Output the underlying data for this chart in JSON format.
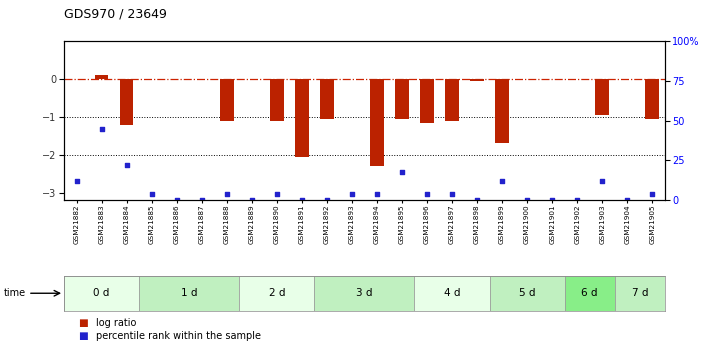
{
  "title": "GDS970 / 23649",
  "samples": [
    "GSM21882",
    "GSM21883",
    "GSM21884",
    "GSM21885",
    "GSM21886",
    "GSM21887",
    "GSM21888",
    "GSM21889",
    "GSM21890",
    "GSM21891",
    "GSM21892",
    "GSM21893",
    "GSM21894",
    "GSM21895",
    "GSM21896",
    "GSM21897",
    "GSM21898",
    "GSM21899",
    "GSM21900",
    "GSM21901",
    "GSM21902",
    "GSM21903",
    "GSM21904",
    "GSM21905"
  ],
  "log_ratio": [
    0.0,
    0.12,
    -1.2,
    0.0,
    0.0,
    0.0,
    -1.1,
    0.0,
    -1.1,
    -2.05,
    -1.05,
    0.0,
    -2.3,
    -1.05,
    -1.15,
    -1.1,
    -0.05,
    -1.7,
    0.0,
    0.0,
    0.0,
    -0.95,
    0.0,
    -1.05
  ],
  "percentile_rank": [
    12,
    45,
    22,
    4,
    0,
    0,
    4,
    0,
    4,
    0,
    0,
    4,
    4,
    18,
    4,
    4,
    0,
    12,
    0,
    0,
    0,
    12,
    0,
    4
  ],
  "time_groups": {
    "0 d": [
      0,
      1,
      2
    ],
    "1 d": [
      3,
      4,
      5,
      6
    ],
    "2 d": [
      7,
      8,
      9
    ],
    "3 d": [
      10,
      11,
      12,
      13
    ],
    "4 d": [
      14,
      15,
      16
    ],
    "5 d": [
      17,
      18,
      19
    ],
    "6 d": [
      20,
      21
    ],
    "7 d": [
      22,
      23
    ]
  },
  "group_colors": [
    "#e8ffe8",
    "#c0f0c0",
    "#e8ffe8",
    "#c0f0c0",
    "#e8ffe8",
    "#c0f0c0",
    "#88ee88",
    "#c0f0c0"
  ],
  "ylim_left": [
    -3.2,
    1.0
  ],
  "ylim_right": [
    0,
    100
  ],
  "bar_color": "#bb2200",
  "dot_color": "#2222cc",
  "bg_color": "#ffffff",
  "hline_color": "#cc2200",
  "dotted_lines": [
    -1.0,
    -2.0
  ],
  "legend_items": [
    {
      "label": "log ratio",
      "color": "#bb2200"
    },
    {
      "label": "percentile rank within the sample",
      "color": "#2222cc"
    }
  ],
  "yticks_left": [
    0,
    -1,
    -2,
    -3
  ],
  "yticks_right": [
    0,
    25,
    50,
    75,
    100
  ],
  "ytick_labels_right": [
    "0",
    "25",
    "50",
    "75",
    "100%"
  ]
}
